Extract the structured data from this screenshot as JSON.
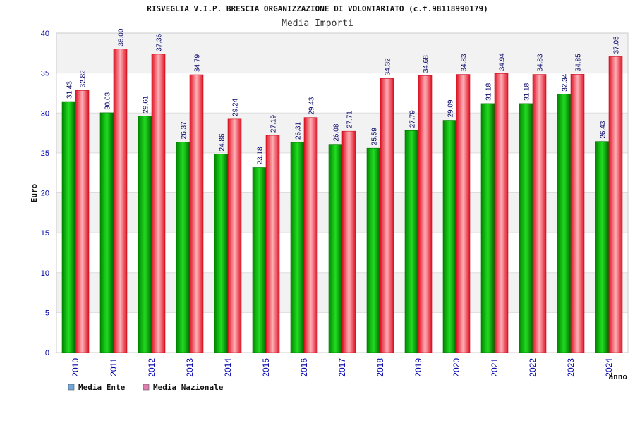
{
  "chart_data": {
    "type": "bar",
    "title": "RISVEGLIA V.I.P. BRESCIA ORGANIZZAZIONE DI VOLONTARIATO (c.f.98118990179)",
    "subtitle": "Media Importi",
    "xlabel": "anno",
    "ylabel": "Euro",
    "ylim": [
      0,
      40
    ],
    "yticks": [
      0,
      5,
      10,
      15,
      20,
      25,
      30,
      35,
      40
    ],
    "grid": true,
    "legend_position": "bottom-left",
    "categories": [
      "2010",
      "2011",
      "2012",
      "2013",
      "2014",
      "2015",
      "2016",
      "2017",
      "2018",
      "2019",
      "2020",
      "2021",
      "2022",
      "2023",
      "2024"
    ],
    "series": [
      {
        "name": "Media Ente",
        "color": "#00aa00",
        "legend_color": "#6fa8dc",
        "values": [
          31.43,
          30.03,
          29.61,
          26.37,
          24.86,
          23.18,
          26.31,
          26.08,
          25.59,
          27.79,
          29.09,
          31.18,
          31.18,
          32.34,
          26.43
        ],
        "labels": [
          "31.43",
          "30.03",
          "29.61",
          "26.37",
          "24.86",
          "23.18",
          "26.31",
          "26.08",
          "25.59",
          "27.79",
          "29.09",
          "31.18",
          "31.18",
          "32.34",
          "26.43"
        ]
      },
      {
        "name": "Media Nazionale",
        "color": "#ee2233",
        "legend_color": "#e07fb0",
        "values": [
          32.82,
          38.0,
          37.36,
          34.79,
          29.24,
          27.19,
          29.43,
          27.71,
          34.32,
          34.68,
          34.83,
          34.94,
          34.83,
          34.85,
          37.05
        ],
        "labels": [
          "32.82",
          "38.00",
          "37.36",
          "34.79",
          "29.24",
          "27.19",
          "29.43",
          "27.71",
          "34.32",
          "34.68",
          "34.83",
          "34.94",
          "34.83",
          "34.85",
          "37.05"
        ]
      }
    ]
  }
}
